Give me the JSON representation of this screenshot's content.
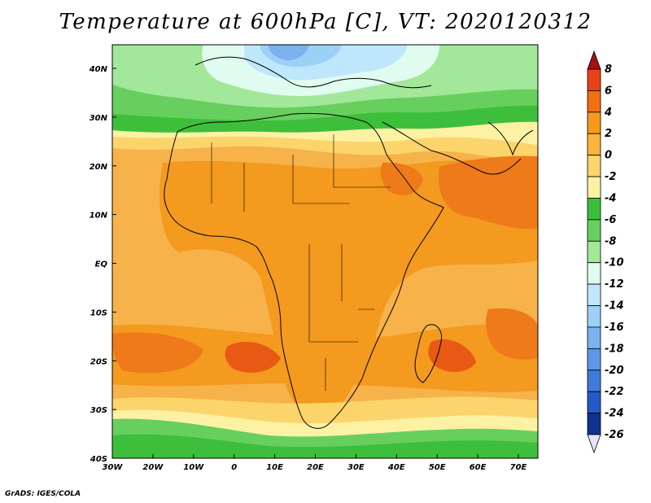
{
  "title": "Temperature at 600hPa [C], VT: 2020120312",
  "credit": "GrADS: IGES/COLA",
  "lat_labels": [
    "40N",
    "30N",
    "20N",
    "10N",
    "EQ",
    "10S",
    "20S",
    "30S",
    "40S"
  ],
  "lon_labels": [
    "30W",
    "20W",
    "10W",
    "0",
    "10E",
    "20E",
    "30E",
    "40E",
    "50E",
    "60E",
    "70E"
  ],
  "colorbar": {
    "levels": [
      "8",
      "6",
      "4",
      "2",
      "0",
      "-2",
      "-4",
      "-6",
      "-8",
      "-10",
      "-12",
      "-14",
      "-16",
      "-18",
      "-20",
      "-22",
      "-24",
      "-26"
    ],
    "colors": [
      "#a50f15",
      "#e8421a",
      "#f36f10",
      "#f79a1c",
      "#fbb53e",
      "#fbd56b",
      "#fdf1a4",
      "#3dbf3b",
      "#67cf5e",
      "#a2e79a",
      "#e0fbef",
      "#bfe7fb",
      "#9dd0f7",
      "#7cb3ef",
      "#5c98e6",
      "#3d7bd9",
      "#2459c7",
      "#10318f",
      "#06195c"
    ]
  },
  "colors": {
    "ocean_bg": "#f7b24a",
    "warm": "#f39a1f",
    "hot": "#ee7a19",
    "hottest": "#e85a14",
    "cool_yellow": "#fbd56b",
    "pale_yellow": "#fdf1a4",
    "green": "#3dbf3b",
    "light_green": "#67cf5e",
    "pale_green": "#a2e79a",
    "mint": "#e0fbef",
    "light_blue": "#bfe7fb",
    "blue": "#9dd0f7",
    "mid_blue": "#7cb3ef"
  }
}
